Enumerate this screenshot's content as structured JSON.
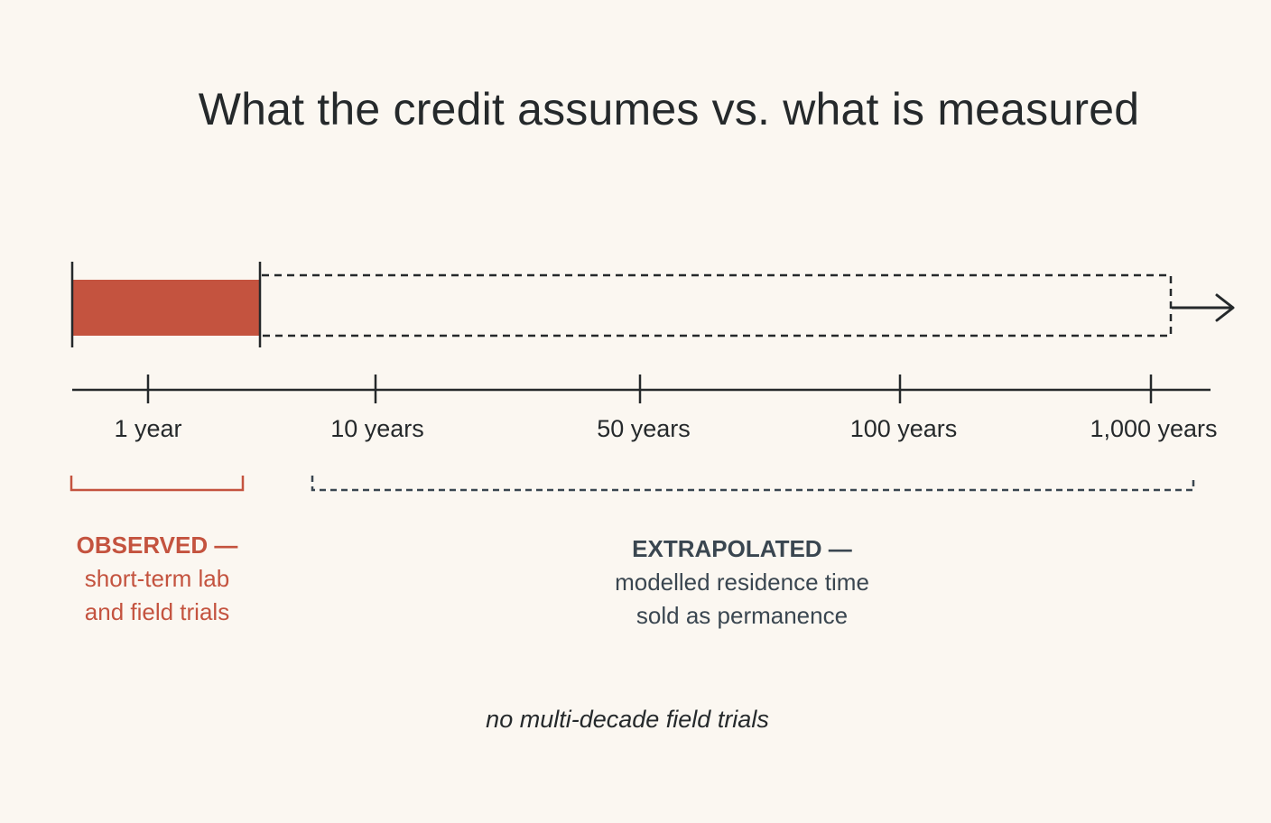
{
  "title": "What the credit assumes vs. what is measured",
  "timeline": {
    "ticks": [
      {
        "label": "1 year",
        "years": 1
      },
      {
        "label": "10 years",
        "years": 10
      },
      {
        "label": "50 years",
        "years": 50
      },
      {
        "label": "100 years",
        "years": 100
      },
      {
        "label": "1,000 years",
        "years": 1000
      }
    ]
  },
  "observed": {
    "heading": "OBSERVED —",
    "line1": "short-term lab",
    "line2": "and field trials",
    "color": "#c4533f"
  },
  "extrapolated": {
    "heading": "EXTRAPOLATED —",
    "line1": "modelled residence time",
    "line2": "sold as permanence",
    "color": "#3a4650"
  },
  "footnote": "no multi-decade field trials",
  "colors": {
    "background": "#fbf7f1",
    "observed_fill": "#c4533f",
    "ink": "#25292b"
  }
}
